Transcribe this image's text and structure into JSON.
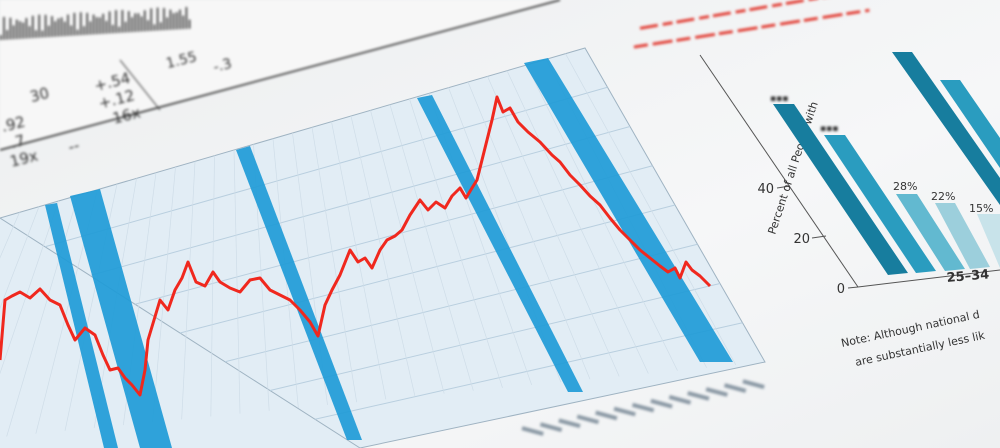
{
  "table_fragment": {
    "cells": [
      "30",
      "+.54",
      ".92",
      "+.12",
      ".7",
      "16x",
      "19x",
      "--",
      "1.55",
      "-.3"
    ]
  },
  "bar_chart": {
    "y_axis_label": "Percent of all People with",
    "y_ticks": [
      "0",
      "20",
      "40"
    ],
    "category_label": "25–34",
    "bar_labels": [
      "28%",
      "22%",
      "15%"
    ],
    "note_lines": [
      "Note: Although national d",
      "are substantially less lik"
    ]
  },
  "colors": {
    "grid_panel": "#e3eef6",
    "stripe_blue": "#1f9bd7",
    "line_red": "#f0281e",
    "bar_dark_teal": "#177d9e",
    "bar_teal": "#2a9cbf",
    "bar_light_teal": "#62b9d0",
    "bar_pale_teal": "#9ccfdc",
    "bar_palest": "#c8e3ea"
  }
}
